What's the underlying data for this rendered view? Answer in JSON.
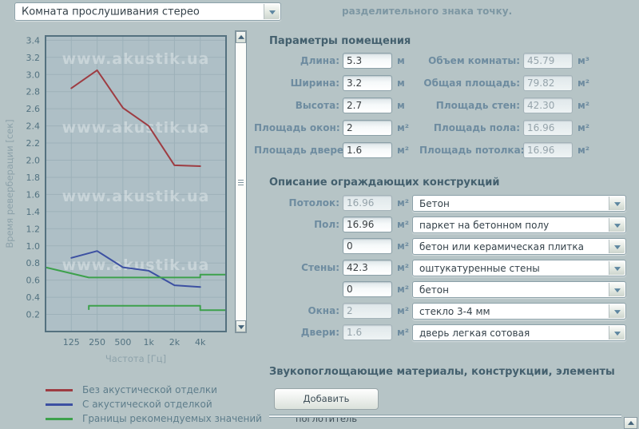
{
  "window": {
    "background": "#b6c4c6"
  },
  "top_bar": {
    "room_preset_select": {
      "value": "Комната прослушивания стерео"
    },
    "note_text": "разделительного знака точку."
  },
  "chart_data": {
    "type": "line",
    "title": "",
    "xlabel": "Частота [Гц]",
    "ylabel": "Время реверберации [сек]",
    "watermark": "www.akustik.ua",
    "xlim": [
      62.5,
      8000
    ],
    "ylim": [
      0,
      3.45
    ],
    "y_tick_step": 0.2,
    "y_tick_max": 3.4,
    "x_ticks": [
      {
        "f": 125,
        "label": "125"
      },
      {
        "f": 250,
        "label": "250"
      },
      {
        "f": 500,
        "label": "500"
      },
      {
        "f": 1000,
        "label": "1k"
      },
      {
        "f": 2000,
        "label": "2k"
      },
      {
        "f": 4000,
        "label": "4k"
      }
    ],
    "grid": true,
    "plot_bg": "#aebfc6",
    "grid_color": "#9db1b9",
    "border_color": "#54717f",
    "series": [
      {
        "id": "no-treatment",
        "name": "Без акустической отделки",
        "color": "#9e3c42",
        "points": [
          [
            125,
            2.84
          ],
          [
            250,
            3.05
          ],
          [
            500,
            2.61
          ],
          [
            1000,
            2.4
          ],
          [
            2000,
            1.94
          ],
          [
            4000,
            1.93
          ]
        ]
      },
      {
        "id": "with-treatment",
        "name": "С акустической отделкой",
        "color": "#3c50a2",
        "points": [
          [
            125,
            0.86
          ],
          [
            250,
            0.94
          ],
          [
            500,
            0.75
          ],
          [
            1000,
            0.71
          ],
          [
            2000,
            0.54
          ],
          [
            4000,
            0.52
          ]
        ]
      },
      {
        "id": "recommended-upper",
        "name": "Границы рекомендуемых значений",
        "color": "#3da14c",
        "points": [
          [
            62.5,
            0.75
          ],
          [
            200,
            0.63
          ],
          [
            4000,
            0.63
          ],
          [
            4000,
            0.665
          ],
          [
            8000,
            0.665
          ]
        ]
      },
      {
        "id": "recommended-lower",
        "name": "Границы рекомендуемых значений",
        "color": "#3da14c",
        "points": [
          [
            200,
            0.26
          ],
          [
            200,
            0.3
          ],
          [
            4000,
            0.3
          ],
          [
            4000,
            0.25
          ],
          [
            8000,
            0.25
          ]
        ]
      }
    ],
    "legend_position": "bottom-left"
  },
  "legend": {
    "items": [
      {
        "label": "Без акустической отделки",
        "color": "#9e3c42"
      },
      {
        "label": "С акустической отделкой",
        "color": "#3c50a2"
      },
      {
        "label": "Границы рекомендуемых значений",
        "color": "#3da14c"
      }
    ]
  },
  "room_params": {
    "title": "Параметры помещения",
    "left": [
      {
        "label": "Длина:",
        "value": "5.3",
        "unit": "м",
        "disabled": false
      },
      {
        "label": "Ширина:",
        "value": "3.2",
        "unit": "м",
        "disabled": false
      },
      {
        "label": "Высота:",
        "value": "2.7",
        "unit": "м",
        "disabled": false
      },
      {
        "label": "Площадь окон:",
        "value": "2",
        "unit": "м²",
        "disabled": false
      },
      {
        "label": "Площадь дверей:",
        "value": "1.6",
        "unit": "м²",
        "disabled": false
      }
    ],
    "right": [
      {
        "label": "Объем комнаты:",
        "value": "45.79",
        "unit": "м³",
        "disabled": true
      },
      {
        "label": "Общая площадь:",
        "value": "79.82",
        "unit": "м²",
        "disabled": true
      },
      {
        "label": "Площадь стен:",
        "value": "42.30",
        "unit": "м²",
        "disabled": true
      },
      {
        "label": "Площадь пола:",
        "value": "16.96",
        "unit": "м²",
        "disabled": true
      },
      {
        "label": "Площадь потолка:",
        "value": "16.96",
        "unit": "м²",
        "disabled": true
      }
    ]
  },
  "constructions": {
    "title": "Описание ограждающих конструкций",
    "rows": [
      {
        "label": "Потолок:",
        "value": "16.96",
        "unit": "м²",
        "disabled": true,
        "material": "Бетон"
      },
      {
        "label": "Пол:",
        "value": "16.96",
        "unit": "м²",
        "disabled": false,
        "material": "паркет на бетонном полу"
      },
      {
        "label": "",
        "value": "0",
        "unit": "м²",
        "disabled": false,
        "material": "бетон или керамическая плитка"
      },
      {
        "label": "Стены:",
        "value": "42.3",
        "unit": "м²",
        "disabled": false,
        "material": "оштукатуренные стены"
      },
      {
        "label": "",
        "value": "0",
        "unit": "м²",
        "disabled": false,
        "material": "бетон"
      },
      {
        "label": "Окна:",
        "value": "2",
        "unit": "м²",
        "disabled": true,
        "material": "стекло 3-4 мм"
      },
      {
        "label": "Двери:",
        "value": "1.6",
        "unit": "м²",
        "disabled": true,
        "material": "дверь легкая сотовая"
      }
    ]
  },
  "absorbers": {
    "title": "Звукопоглощающие материалы, конструкции, элементы",
    "add_button": "Добавить поглотитель"
  }
}
